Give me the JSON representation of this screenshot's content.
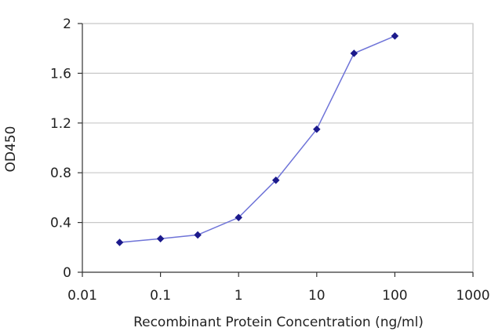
{
  "chart_data": {
    "type": "line",
    "title": "",
    "xlabel": "Recombinant Protein Concentration (ng/ml)",
    "ylabel": "OD450",
    "x_scale": "log",
    "xlim": [
      0.01,
      1000
    ],
    "ylim": [
      0,
      2
    ],
    "x_ticks": [
      0.01,
      0.1,
      1,
      10,
      100,
      1000
    ],
    "x_tick_labels": [
      "0.01",
      "0.1",
      "1",
      "10",
      "100",
      "1000"
    ],
    "y_ticks": [
      0,
      0.4,
      0.8,
      1.2,
      1.6,
      2
    ],
    "y_tick_labels": [
      "0",
      "0.4",
      "0.8",
      "1.2",
      "1.6",
      "2"
    ],
    "grid": "horizontal",
    "legend": "none",
    "series": [
      {
        "x": [
          0.03,
          0.1,
          0.3,
          1,
          3,
          10,
          30,
          100
        ],
        "y": [
          0.24,
          0.27,
          0.3,
          0.44,
          0.74,
          1.15,
          1.76,
          1.9
        ],
        "color": "#6f74d8",
        "marker_color": "#1c1a8c"
      }
    ],
    "plot_background": "#ffffff",
    "grid_color": "#c8c8c8",
    "frame_color": "#b0b0b0"
  }
}
